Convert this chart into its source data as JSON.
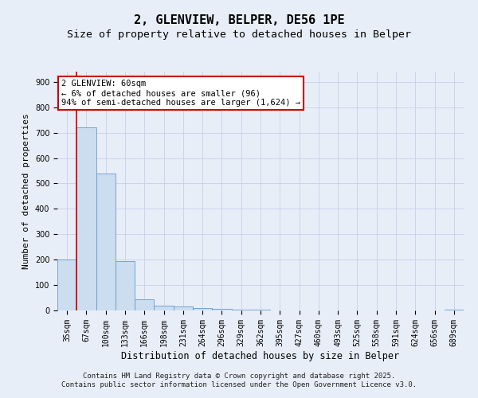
{
  "title": "2, GLENVIEW, BELPER, DE56 1PE",
  "subtitle": "Size of property relative to detached houses in Belper",
  "xlabel": "Distribution of detached houses by size in Belper",
  "ylabel": "Number of detached properties",
  "categories": [
    "35sqm",
    "67sqm",
    "100sqm",
    "133sqm",
    "166sqm",
    "198sqm",
    "231sqm",
    "264sqm",
    "296sqm",
    "329sqm",
    "362sqm",
    "395sqm",
    "427sqm",
    "460sqm",
    "493sqm",
    "525sqm",
    "558sqm",
    "591sqm",
    "624sqm",
    "656sqm",
    "689sqm"
  ],
  "values": [
    200,
    720,
    540,
    195,
    45,
    20,
    15,
    10,
    5,
    4,
    3,
    0,
    0,
    0,
    0,
    0,
    0,
    0,
    0,
    0,
    2
  ],
  "bar_color": "#ccddf0",
  "bar_edge_color": "#6699cc",
  "grid_color": "#c8d0e8",
  "background_color": "#e8eef8",
  "vline_x": 0.5,
  "vline_color": "#cc0000",
  "annotation_text": "2 GLENVIEW: 60sqm\n← 6% of detached houses are smaller (96)\n94% of semi-detached houses are larger (1,624) →",
  "annotation_box_facecolor": "#ffffff",
  "annotation_box_edgecolor": "#cc0000",
  "ylim": [
    0,
    940
  ],
  "yticks": [
    0,
    100,
    200,
    300,
    400,
    500,
    600,
    700,
    800,
    900
  ],
  "footer_line1": "Contains HM Land Registry data © Crown copyright and database right 2025.",
  "footer_line2": "Contains public sector information licensed under the Open Government Licence v3.0.",
  "title_fontsize": 11,
  "subtitle_fontsize": 9.5,
  "xlabel_fontsize": 8.5,
  "ylabel_fontsize": 8,
  "tick_fontsize": 7,
  "annotation_fontsize": 7.5,
  "footer_fontsize": 6.5
}
